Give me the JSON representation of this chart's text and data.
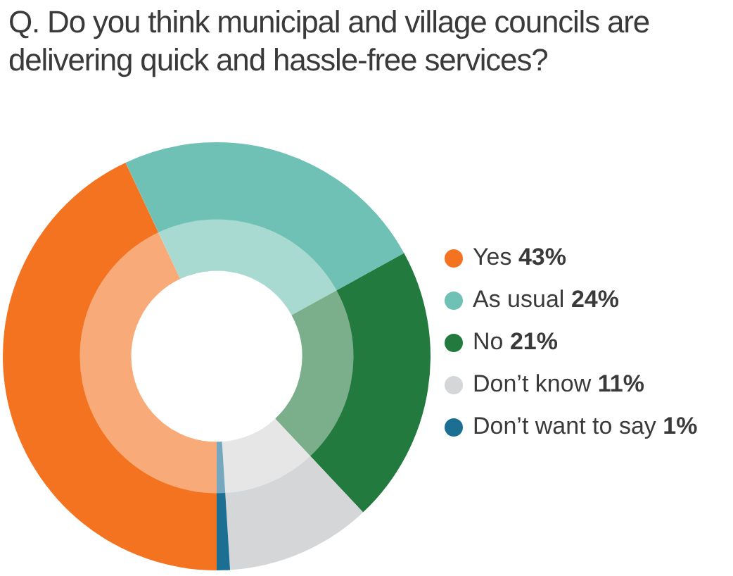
{
  "chart_data": {
    "type": "donut",
    "title": "Q. Do you think municipal and village councils are delivering quick and hassle-free services?",
    "categories": [
      "Yes",
      "As usual",
      "No",
      "Don’t know",
      "Don’t want to say"
    ],
    "values": [
      43,
      24,
      21,
      11,
      1
    ],
    "value_labels": [
      "43%",
      "24%",
      "21%",
      "11%",
      "1%"
    ],
    "colors": [
      "#f47321",
      "#6ec1b4",
      "#237a3f",
      "#d5d6d8",
      "#1a6f93"
    ],
    "legend": "right"
  }
}
